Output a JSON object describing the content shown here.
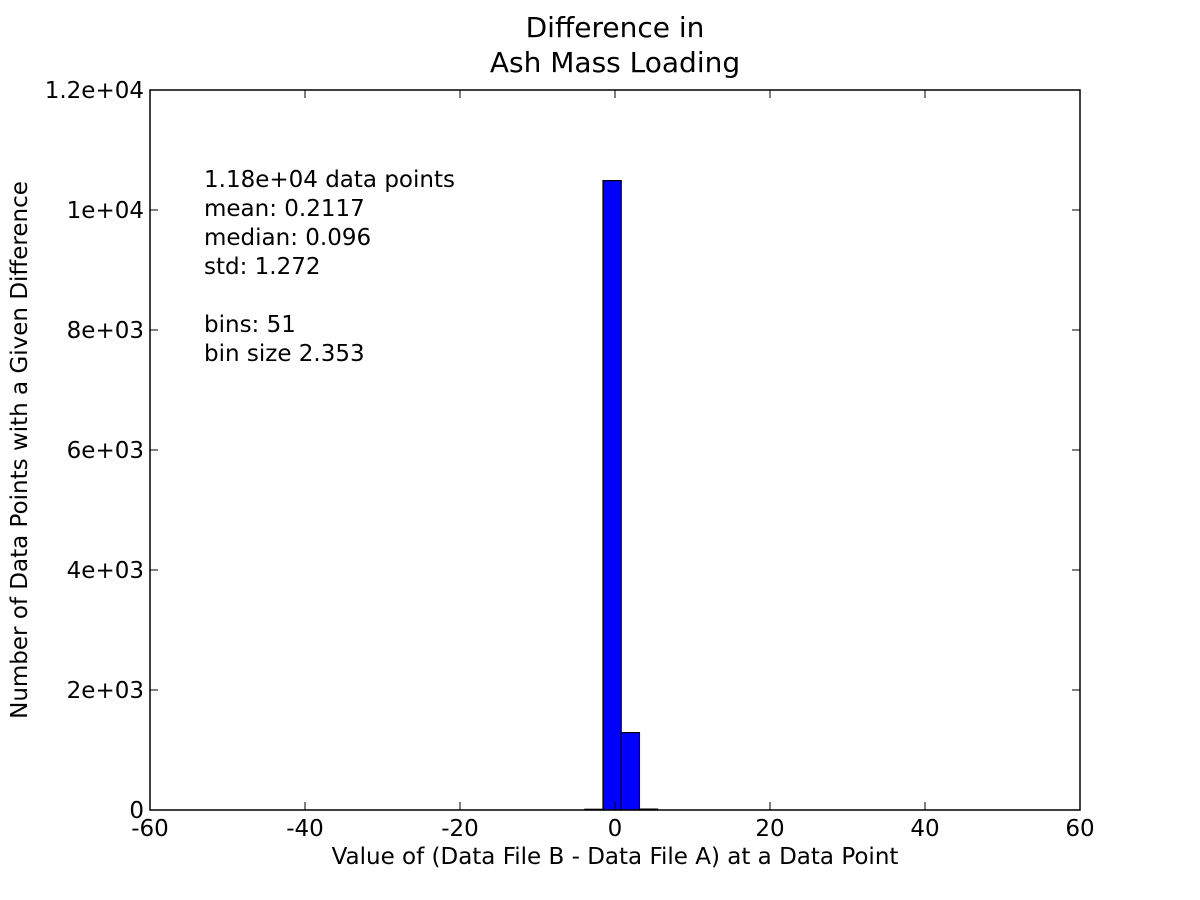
{
  "chart_data": {
    "type": "bar",
    "title_lines": [
      "Difference in",
      "Ash Mass Loading"
    ],
    "xlabel": "Value of (Data File B - Data File A) at a Data Point",
    "ylabel": "Number of Data Points with a Given Difference",
    "xlim": [
      -60,
      60
    ],
    "ylim": [
      0,
      12000
    ],
    "x_ticks": [
      -60,
      -40,
      -20,
      0,
      20,
      40,
      60
    ],
    "x_tick_labels": [
      "-60",
      "-40",
      "-20",
      "0",
      "20",
      "40",
      "60"
    ],
    "y_ticks": [
      0,
      2000,
      4000,
      6000,
      8000,
      10000,
      12000
    ],
    "y_tick_labels": [
      "0",
      "2e+03",
      "4e+03",
      "6e+03",
      "8e+03",
      "1e+04",
      "1.2e+04"
    ],
    "grid": false,
    "bar_color": "#0000ff",
    "bin_width": 2.353,
    "bars": [
      {
        "x_start": -3.9,
        "value": 12
      },
      {
        "x_start": -1.55,
        "value": 10490
      },
      {
        "x_start": 0.8,
        "value": 1290
      },
      {
        "x_start": 3.15,
        "value": 15
      }
    ],
    "annotation_lines": [
      "1.18e+04 data points",
      "mean: 0.2117",
      "median: 0.096",
      "std: 1.272",
      "",
      "bins: 51",
      "bin size 2.353"
    ]
  }
}
